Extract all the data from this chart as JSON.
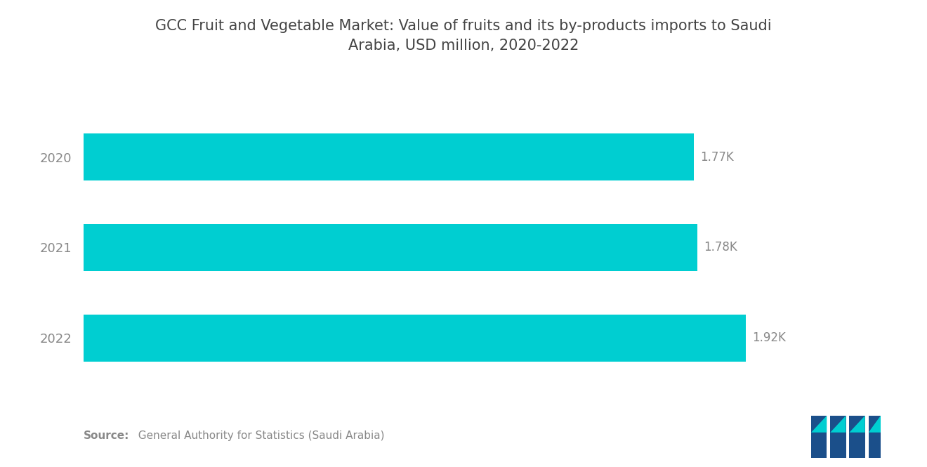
{
  "title_line1": "GCC Fruit and Vegetable Market: Value of fruits and its by-products imports to Saudi",
  "title_line2": "Arabia, USD million, 2020-2022",
  "categories": [
    "2020",
    "2021",
    "2022"
  ],
  "values": [
    1770,
    1780,
    1920
  ],
  "labels": [
    "1.77K",
    "1.78K",
    "1.92K"
  ],
  "bar_color": "#00CED1",
  "background_color": "#ffffff",
  "source_bold": "Source:",
  "source_normal": "  General Authority for Statistics (Saudi Arabia)",
  "title_fontsize": 15,
  "label_fontsize": 12,
  "ytick_fontsize": 13,
  "source_fontsize": 11,
  "bar_height": 0.52,
  "xlim_max": 2150,
  "text_color": "#888888",
  "title_color": "#444444"
}
